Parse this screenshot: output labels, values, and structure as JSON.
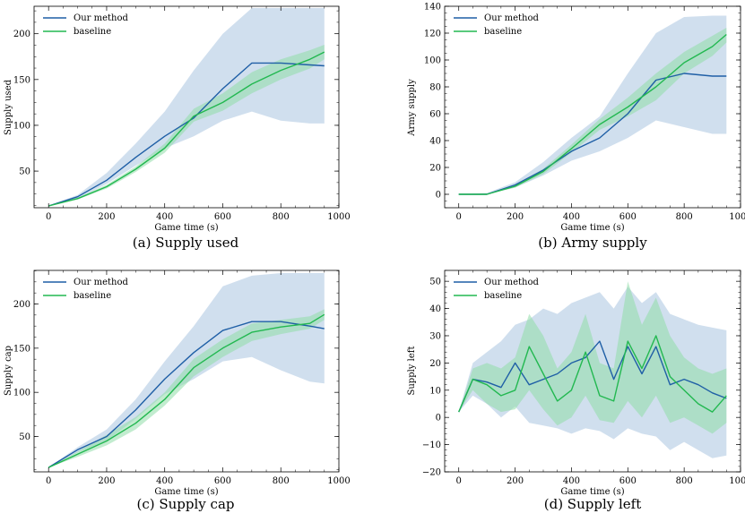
{
  "colors": {
    "ours": "#1f5fa6",
    "ours_band": "#a9c5e0",
    "baseline": "#22b850",
    "baseline_band": "#8fdca8"
  },
  "chart_data": [
    {
      "type": "line",
      "caption": "(a) Supply used",
      "xlabel": "Game time (s)",
      "ylabel": "Supply used",
      "xlim": [
        -50,
        1000
      ],
      "ylim": [
        10,
        230
      ],
      "xticks": [
        0,
        200,
        400,
        600,
        800,
        1000
      ],
      "yticks": [
        50,
        100,
        150,
        200
      ],
      "legend": {
        "position": "top-left",
        "entries": [
          "Our method",
          "baseline"
        ]
      },
      "x": [
        0,
        100,
        200,
        300,
        400,
        500,
        600,
        700,
        800,
        900,
        950
      ],
      "series": [
        {
          "name": "Our method",
          "values": [
            12,
            22,
            40,
            65,
            88,
            108,
            140,
            168,
            168,
            166,
            165
          ],
          "lower": [
            12,
            20,
            36,
            56,
            75,
            88,
            105,
            115,
            105,
            102,
            102
          ],
          "upper": [
            12,
            24,
            48,
            80,
            115,
            160,
            200,
            228,
            228,
            228,
            228
          ]
        },
        {
          "name": "baseline",
          "values": [
            12,
            20,
            33,
            52,
            75,
            110,
            125,
            145,
            160,
            172,
            180
          ],
          "lower": [
            12,
            19,
            31,
            49,
            70,
            104,
            116,
            135,
            150,
            162,
            172
          ],
          "upper": [
            12,
            21,
            35,
            55,
            80,
            118,
            135,
            158,
            172,
            182,
            188
          ]
        }
      ]
    },
    {
      "type": "line",
      "caption": "(b) Army supply",
      "xlabel": "Game time (s)",
      "ylabel": "Army supply",
      "xlim": [
        -50,
        1000
      ],
      "ylim": [
        -10,
        140
      ],
      "xticks": [
        0,
        200,
        400,
        600,
        800,
        1000
      ],
      "yticks": [
        0,
        20,
        40,
        60,
        80,
        100,
        120,
        140
      ],
      "legend": {
        "position": "top-left",
        "entries": [
          "Our method",
          "baseline"
        ]
      },
      "x": [
        0,
        100,
        200,
        300,
        400,
        500,
        600,
        700,
        800,
        900,
        950
      ],
      "series": [
        {
          "name": "Our method",
          "values": [
            0,
            0,
            7,
            18,
            32,
            42,
            60,
            85,
            90,
            88,
            88
          ],
          "lower": [
            0,
            0,
            5,
            14,
            25,
            32,
            42,
            55,
            50,
            45,
            45
          ],
          "upper": [
            0,
            1,
            9,
            24,
            42,
            58,
            90,
            120,
            132,
            133,
            133
          ]
        },
        {
          "name": "baseline",
          "values": [
            0,
            0,
            6,
            17,
            34,
            52,
            65,
            80,
            98,
            110,
            119
          ],
          "lower": [
            0,
            0,
            5,
            15,
            31,
            48,
            58,
            70,
            90,
            103,
            113
          ],
          "upper": [
            0,
            0,
            7,
            19,
            37,
            56,
            72,
            90,
            106,
            118,
            124
          ]
        }
      ]
    },
    {
      "type": "line",
      "caption": "(c) Supply cap",
      "xlabel": "Game time (s)",
      "ylabel": "Supply cap",
      "xlim": [
        -50,
        1000
      ],
      "ylim": [
        10,
        238
      ],
      "xticks": [
        0,
        200,
        400,
        600,
        800,
        1000
      ],
      "yticks": [
        50,
        100,
        150,
        200
      ],
      "legend": {
        "position": "top-left",
        "entries": [
          "Our method",
          "baseline"
        ]
      },
      "x": [
        0,
        100,
        200,
        300,
        400,
        500,
        600,
        700,
        800,
        900,
        950
      ],
      "series": [
        {
          "name": "Our method",
          "values": [
            15,
            35,
            50,
            80,
            115,
            145,
            170,
            180,
            180,
            175,
            172
          ],
          "lower": [
            15,
            32,
            45,
            70,
            98,
            115,
            135,
            140,
            125,
            112,
            110
          ],
          "upper": [
            15,
            38,
            58,
            92,
            135,
            175,
            220,
            232,
            235,
            235,
            235
          ]
        },
        {
          "name": "baseline",
          "values": [
            15,
            30,
            45,
            65,
            92,
            128,
            150,
            168,
            174,
            178,
            188
          ],
          "lower": [
            15,
            27,
            40,
            58,
            85,
            118,
            140,
            158,
            166,
            172,
            182
          ],
          "upper": [
            15,
            33,
            52,
            72,
            100,
            138,
            160,
            178,
            182,
            186,
            194
          ]
        }
      ]
    },
    {
      "type": "line",
      "caption": "(d) Supply left",
      "xlabel": "Game time (s)",
      "ylabel": "Supply left",
      "xlim": [
        -50,
        1000
      ],
      "ylim": [
        -20,
        54
      ],
      "xticks": [
        0,
        200,
        400,
        600,
        800,
        1000
      ],
      "yticks": [
        -20,
        -10,
        0,
        10,
        20,
        30,
        40,
        50
      ],
      "legend": {
        "position": "top-left",
        "entries": [
          "Our method",
          "baseline"
        ]
      },
      "x": [
        0,
        50,
        100,
        150,
        200,
        250,
        300,
        350,
        400,
        450,
        500,
        550,
        600,
        650,
        700,
        750,
        800,
        850,
        900,
        950
      ],
      "series": [
        {
          "name": "Our method",
          "values": [
            2,
            14,
            13,
            11,
            20,
            12,
            14,
            16,
            20,
            22,
            28,
            14,
            26,
            16,
            26,
            12,
            14,
            12,
            9,
            7
          ],
          "lower": [
            2,
            8,
            5,
            0,
            4,
            -2,
            -3,
            -4,
            -6,
            -4,
            -5,
            -8,
            -4,
            -6,
            -7,
            -12,
            -9,
            -12,
            -15,
            -14
          ],
          "upper": [
            2,
            20,
            24,
            28,
            34,
            36,
            40,
            38,
            42,
            44,
            46,
            40,
            48,
            42,
            46,
            38,
            36,
            34,
            33,
            32
          ]
        },
        {
          "name": "baseline",
          "values": [
            2,
            14,
            12,
            8,
            10,
            26,
            16,
            6,
            10,
            24,
            8,
            6,
            28,
            18,
            30,
            15,
            10,
            5,
            2,
            8
          ],
          "lower": [
            2,
            10,
            5,
            2,
            3,
            10,
            3,
            -3,
            0,
            8,
            -1,
            -2,
            6,
            0,
            8,
            -2,
            0,
            -3,
            -6,
            -2
          ],
          "upper": [
            2,
            18,
            20,
            18,
            22,
            38,
            30,
            18,
            24,
            38,
            20,
            18,
            50,
            34,
            44,
            30,
            22,
            18,
            16,
            18
          ]
        }
      ]
    }
  ]
}
